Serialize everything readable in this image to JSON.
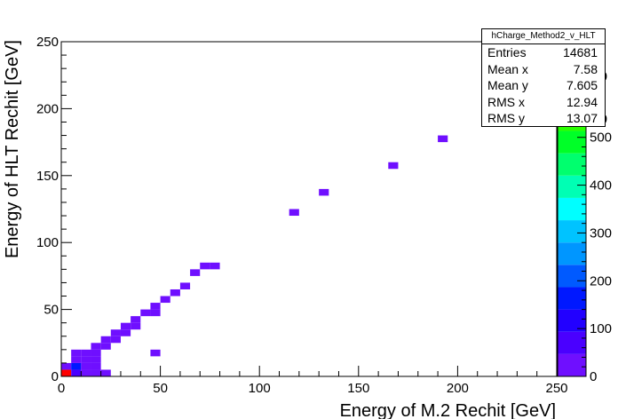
{
  "chart_data": {
    "type": "heatmap",
    "title": "",
    "xlabel": "Energy of M.2 Rechit [GeV]",
    "ylabel": "Energy of HLT Rechit [GeV]",
    "xlim": [
      0,
      250
    ],
    "ylim": [
      0,
      250
    ],
    "x_ticks": [
      "0",
      "50",
      "100",
      "150",
      "200",
      "250"
    ],
    "y_ticks": [
      "0",
      "50",
      "100",
      "150",
      "200",
      "250"
    ],
    "bin_width": 5,
    "color_scale": {
      "min": 0,
      "max": 700,
      "ticks": [
        "0",
        "100",
        "200",
        "300",
        "400",
        "500"
      ],
      "colors": [
        "#6f0fff",
        "#4a00ff",
        "#2200ff",
        "#0018ff",
        "#005aff",
        "#0096ff",
        "#00c3ff",
        "#00ffff",
        "#00ffb4",
        "#00ff6e",
        "#00ff28",
        "#2aff00",
        "#6cff00",
        "#a8ff00",
        "#e4ff00"
      ]
    },
    "cells": [
      {
        "x": 0,
        "y": 0,
        "value": 680
      },
      {
        "x": 5,
        "y": 0,
        "value": 60
      },
      {
        "x": 0,
        "y": 5,
        "value": 30
      },
      {
        "x": 5,
        "y": 5,
        "value": 180
      },
      {
        "x": 10,
        "y": 0,
        "value": 10
      },
      {
        "x": 15,
        "y": 0,
        "value": 5
      },
      {
        "x": 20,
        "y": 0,
        "value": 2
      },
      {
        "x": 10,
        "y": 5,
        "value": 15
      },
      {
        "x": 15,
        "y": 5,
        "value": 6
      },
      {
        "x": 5,
        "y": 10,
        "value": 12
      },
      {
        "x": 10,
        "y": 10,
        "value": 30
      },
      {
        "x": 15,
        "y": 10,
        "value": 8
      },
      {
        "x": 5,
        "y": 15,
        "value": 4
      },
      {
        "x": 10,
        "y": 15,
        "value": 6
      },
      {
        "x": 15,
        "y": 15,
        "value": 5
      },
      {
        "x": 15,
        "y": 20,
        "value": 3
      },
      {
        "x": 20,
        "y": 20,
        "value": 3
      },
      {
        "x": 20,
        "y": 25,
        "value": 2
      },
      {
        "x": 25,
        "y": 25,
        "value": 2
      },
      {
        "x": 25,
        "y": 30,
        "value": 2
      },
      {
        "x": 30,
        "y": 30,
        "value": 2
      },
      {
        "x": 30,
        "y": 35,
        "value": 1
      },
      {
        "x": 35,
        "y": 35,
        "value": 1
      },
      {
        "x": 35,
        "y": 40,
        "value": 1
      },
      {
        "x": 40,
        "y": 45,
        "value": 1
      },
      {
        "x": 45,
        "y": 45,
        "value": 1
      },
      {
        "x": 45,
        "y": 50,
        "value": 1
      },
      {
        "x": 50,
        "y": 55,
        "value": 1
      },
      {
        "x": 55,
        "y": 60,
        "value": 1
      },
      {
        "x": 60,
        "y": 65,
        "value": 1
      },
      {
        "x": 65,
        "y": 75,
        "value": 1
      },
      {
        "x": 70,
        "y": 80,
        "value": 1
      },
      {
        "x": 75,
        "y": 80,
        "value": 1
      },
      {
        "x": 45,
        "y": 15,
        "value": 1
      },
      {
        "x": 115,
        "y": 120,
        "value": 1
      },
      {
        "x": 130,
        "y": 135,
        "value": 1
      },
      {
        "x": 165,
        "y": 155,
        "value": 1
      },
      {
        "x": 190,
        "y": 175,
        "value": 1
      }
    ],
    "stats_box": {
      "name": "hCharge_Method2_v_HLT",
      "rows": [
        {
          "label": "Entries",
          "value": "14681"
        },
        {
          "label": "Mean x",
          "value": "7.58"
        },
        {
          "label": "Mean y",
          "value": "7.605"
        },
        {
          "label": "RMS x",
          "value": "12.94"
        },
        {
          "label": "RMS y",
          "value": "13.07"
        }
      ]
    },
    "partial_colorbar_labels": [
      "0",
      "0"
    ]
  }
}
